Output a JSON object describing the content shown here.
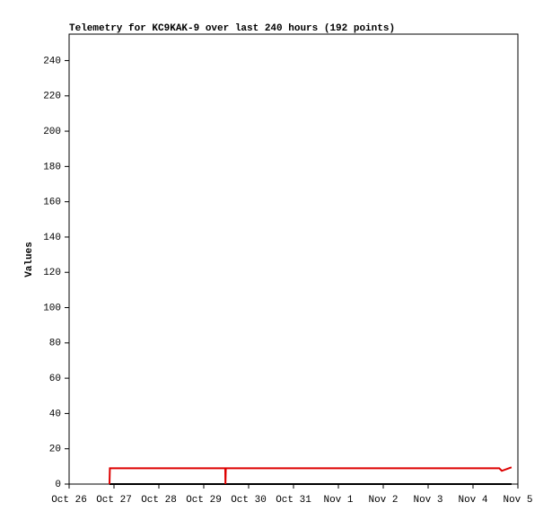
{
  "chart_data": {
    "type": "line",
    "title": "Telemetry for KC9KAK-9 over last 240 hours (192 points)",
    "y_label": "Values",
    "xlim": [
      0,
      240
    ],
    "xticks": [
      {
        "value": 0,
        "label": "Oct 26"
      },
      {
        "value": 24,
        "label": "Oct 27"
      },
      {
        "value": 48,
        "label": "Oct 28"
      },
      {
        "value": 72,
        "label": "Oct 29"
      },
      {
        "value": 96,
        "label": "Oct 30"
      },
      {
        "value": 120,
        "label": "Oct 31"
      },
      {
        "value": 144,
        "label": "Nov 1"
      },
      {
        "value": 168,
        "label": "Nov 2"
      },
      {
        "value": 192,
        "label": "Nov 3"
      },
      {
        "value": 216,
        "label": "Nov 4"
      },
      {
        "value": 240,
        "label": "Nov 5"
      }
    ],
    "ylim": [
      0,
      255
    ],
    "yticks": [
      0,
      20,
      40,
      60,
      80,
      100,
      120,
      140,
      160,
      180,
      200,
      220,
      240
    ],
    "grid": false,
    "series": [
      {
        "color": "#000000",
        "x": [
          21.6,
          236.6
        ],
        "values": [
          0,
          0
        ]
      },
      {
        "color": "#dd0000",
        "x": [
          21.6,
          21.8,
          83.5,
          83.6,
          83.8,
          230,
          231.4,
          236.6
        ],
        "values": [
          0,
          9,
          9,
          0,
          9,
          9,
          7.5,
          9.5
        ]
      }
    ]
  }
}
